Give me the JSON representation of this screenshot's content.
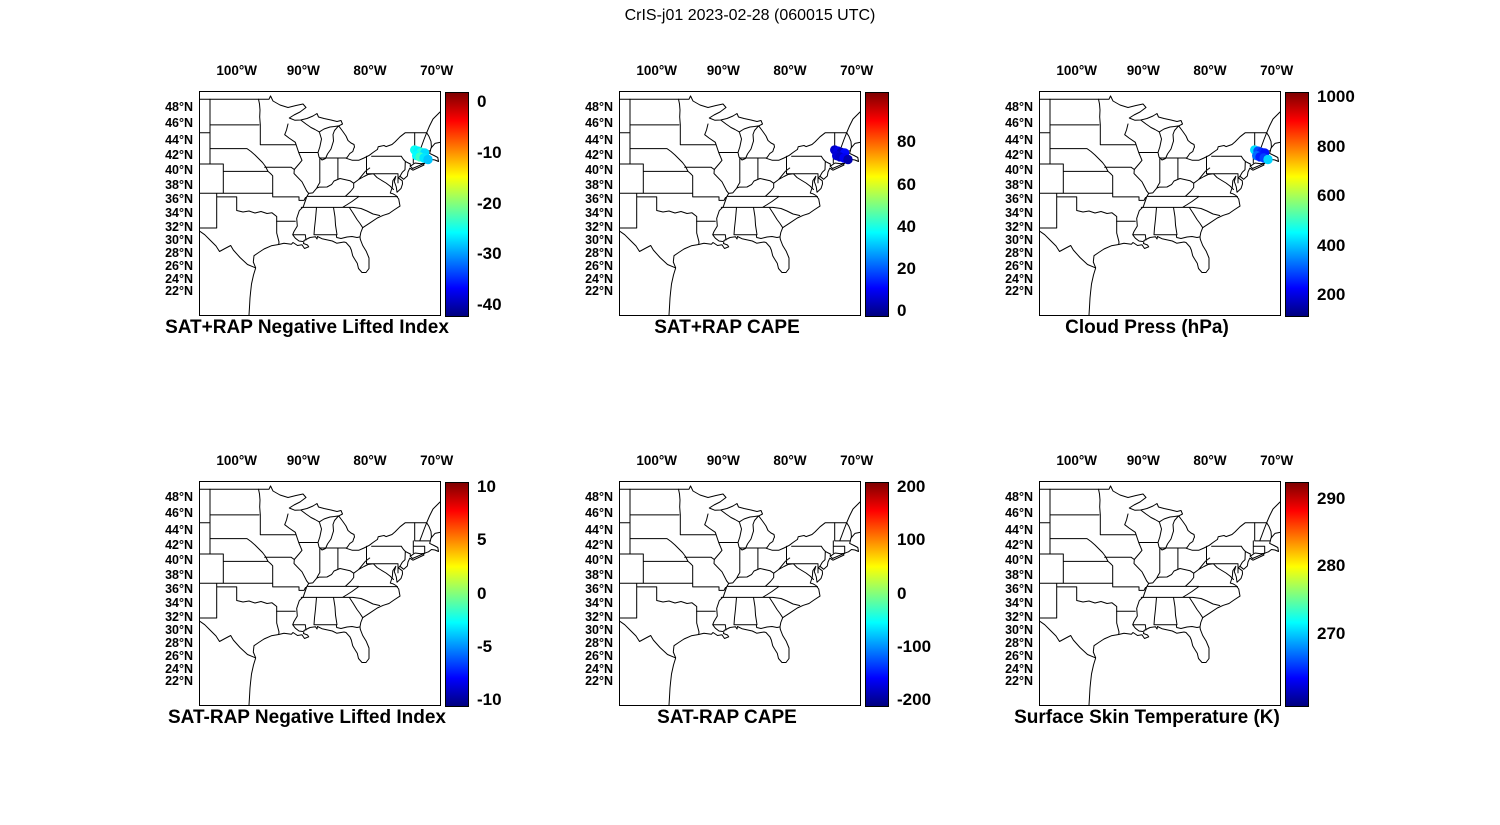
{
  "figure_title": "CrIS-j01 2023-02-28 (060015 UTC)",
  "map_axes": {
    "projection": "mercator",
    "lon_range": [
      -105.5,
      -69.5
    ],
    "lat_range": [
      18.2,
      49.8
    ],
    "lon_ticks": {
      "values": [
        -100,
        -90,
        -80,
        -70
      ],
      "labels": [
        "100°W",
        "90°W",
        "80°W",
        "70°W"
      ]
    },
    "lat_ticks": {
      "values": [
        48,
        46,
        44,
        42,
        40,
        38,
        36,
        34,
        32,
        30,
        28,
        26,
        24,
        22
      ],
      "labels": [
        "48°N",
        "46°N",
        "44°N",
        "42°N",
        "40°N",
        "38°N",
        "36°N",
        "34°N",
        "32°N",
        "30°N",
        "28°N",
        "26°N",
        "24°N",
        "22°N"
      ]
    }
  },
  "colors": {
    "map_line": "#000000",
    "background": "#ffffff",
    "colormap": "jet",
    "colormap_stops": [
      "#00007F",
      "#0000FF",
      "#007FFF",
      "#00FFFF",
      "#7FFF7F",
      "#FFFF00",
      "#FF7F00",
      "#FF0000",
      "#7F0000"
    ]
  },
  "chart_data": [
    {
      "type": "scatter",
      "title": "SAT+RAP Negative Lifted Index",
      "clim": [
        -42,
        2
      ],
      "colorbar_ticks": [
        0,
        -10,
        -20,
        -30,
        -40
      ],
      "points": {
        "lon": [
          -73.3,
          -72.8,
          -72.3,
          -71.8,
          -73.0,
          -72.5,
          -71.9,
          -71.3
        ],
        "lat": [
          42.8,
          42.65,
          42.5,
          42.4,
          42.05,
          41.9,
          41.75,
          41.55
        ],
        "value": [
          -25,
          -26,
          -24,
          -27,
          -25.5,
          -23,
          -26.5,
          -28
        ]
      }
    },
    {
      "type": "scatter",
      "title": "SAT+RAP CAPE",
      "clim": [
        -2,
        104
      ],
      "colorbar_ticks": [
        80,
        60,
        40,
        20,
        0
      ],
      "points": {
        "lon": [
          -73.3,
          -72.8,
          -72.3,
          -71.8,
          -73.0,
          -72.5,
          -71.9,
          -71.3
        ],
        "lat": [
          42.8,
          42.65,
          42.5,
          42.4,
          42.05,
          41.9,
          41.75,
          41.55
        ],
        "value": [
          6,
          9,
          4,
          12,
          7,
          5,
          10,
          3
        ]
      }
    },
    {
      "type": "scatter",
      "title": "Cloud Press (hPa)",
      "clim": [
        120,
        1020
      ],
      "colorbar_ticks": [
        1000,
        800,
        600,
        400,
        200
      ],
      "points": {
        "lon": [
          -73.3,
          -72.8,
          -72.3,
          -71.8,
          -73.0,
          -72.5,
          -71.9,
          -71.3
        ],
        "lat": [
          42.8,
          42.65,
          42.5,
          42.4,
          42.05,
          41.9,
          41.75,
          41.55
        ],
        "value": [
          430,
          300,
          270,
          250,
          330,
          260,
          290,
          420
        ]
      }
    },
    {
      "type": "scatter",
      "title": "SAT-RAP Negative Lifted Index",
      "clim": [
        -10.5,
        10.5
      ],
      "colorbar_ticks": [
        10,
        5,
        0,
        -5,
        -10
      ],
      "points": {
        "lon": [],
        "lat": [],
        "value": []
      }
    },
    {
      "type": "scatter",
      "title": "SAT-RAP CAPE",
      "clim": [
        -210,
        210
      ],
      "colorbar_ticks": [
        200,
        100,
        0,
        -100,
        -200
      ],
      "points": {
        "lon": [],
        "lat": [],
        "value": []
      }
    },
    {
      "type": "scatter",
      "title": "Surface Skin Temperature (K)",
      "clim": [
        259.5,
        292.5
      ],
      "colorbar_ticks": [
        290,
        280,
        270
      ],
      "points": {
        "lon": [],
        "lat": [],
        "value": []
      }
    }
  ]
}
